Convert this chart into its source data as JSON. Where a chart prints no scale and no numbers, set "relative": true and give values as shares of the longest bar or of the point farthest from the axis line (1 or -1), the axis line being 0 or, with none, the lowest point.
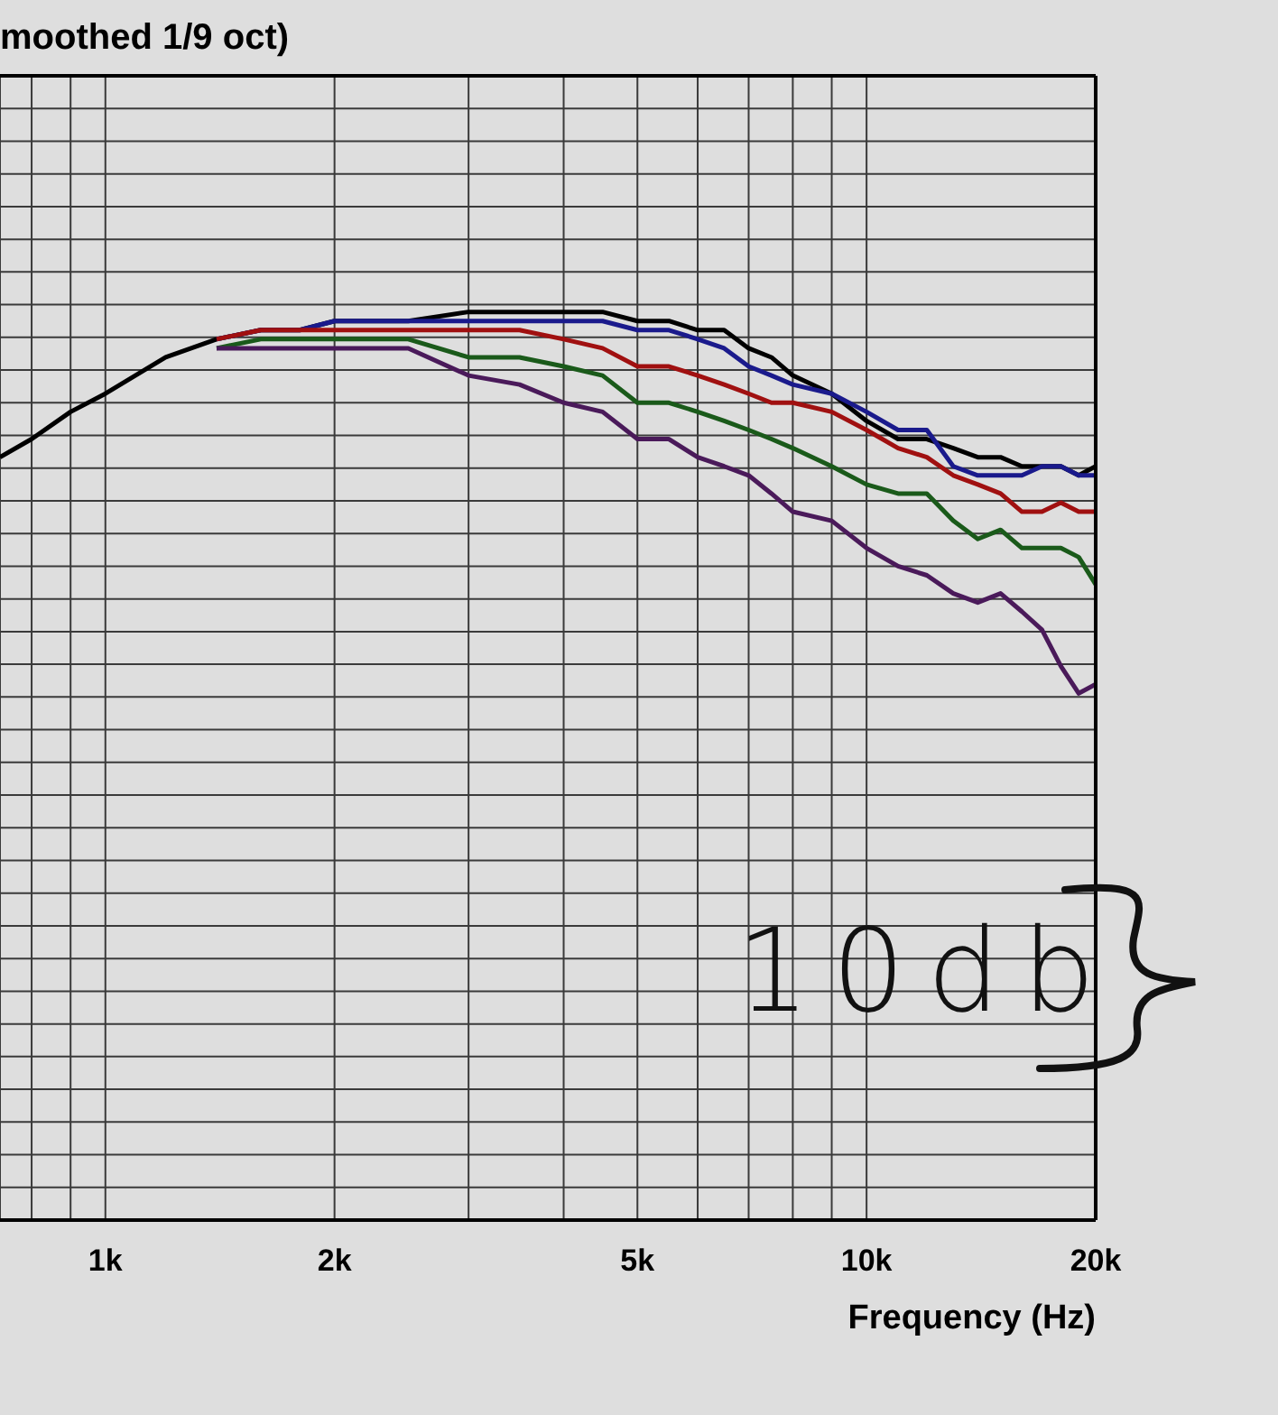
{
  "chart_data": {
    "type": "line",
    "title": "moothed 1/9 oct)",
    "xlabel": "Frequency (Hz)",
    "annotations": [
      "10db"
    ],
    "relative": true,
    "log": "x",
    "grid": true,
    "xlim": [
      727,
      20000
    ],
    "xticks": [
      {
        "value": 800,
        "label": null
      },
      {
        "value": 900,
        "label": null
      },
      {
        "value": 1000,
        "label": "1k"
      },
      {
        "value": 2000,
        "label": "2k"
      },
      {
        "value": 3000,
        "label": null
      },
      {
        "value": 4000,
        "label": null
      },
      {
        "value": 5000,
        "label": "5k"
      },
      {
        "value": 6000,
        "label": null
      },
      {
        "value": 7000,
        "label": null
      },
      {
        "value": 8000,
        "label": null
      },
      {
        "value": 9000,
        "label": null
      },
      {
        "value": 10000,
        "label": "10k"
      },
      {
        "value": 20000,
        "label": "20k"
      }
    ],
    "x": [
      727,
      800,
      900,
      1000,
      1200,
      1400,
      1600,
      1800,
      2000,
      2500,
      3000,
      3500,
      4000,
      4500,
      5000,
      5500,
      6000,
      6500,
      7000,
      7500,
      8000,
      9000,
      10000,
      11000,
      12000,
      13000,
      14000,
      15000,
      16000,
      17000,
      18000,
      19000,
      20000
    ],
    "series": [
      {
        "color": "#000000",
        "values": [
          0.84,
          0.86,
          0.89,
          0.91,
          0.95,
          0.97,
          0.98,
          0.98,
          0.99,
          0.99,
          1.0,
          1.0,
          1.0,
          1.0,
          0.99,
          0.99,
          0.98,
          0.98,
          0.96,
          0.95,
          0.93,
          0.91,
          0.88,
          0.86,
          0.86,
          0.85,
          0.84,
          0.84,
          0.83,
          0.83,
          0.83,
          0.82,
          0.83
        ]
      },
      {
        "color": "#1a1a8c",
        "values": [
          null,
          null,
          null,
          null,
          null,
          0.97,
          0.98,
          0.98,
          0.99,
          0.99,
          0.99,
          0.99,
          0.99,
          0.99,
          0.98,
          0.98,
          0.97,
          0.96,
          0.94,
          0.93,
          0.92,
          0.91,
          0.89,
          0.87,
          0.87,
          0.83,
          0.82,
          0.82,
          0.82,
          0.83,
          0.83,
          0.82,
          0.82
        ]
      },
      {
        "color": "#a01010",
        "values": [
          null,
          null,
          null,
          null,
          null,
          0.97,
          0.98,
          0.98,
          0.98,
          0.98,
          0.98,
          0.98,
          0.97,
          0.96,
          0.94,
          0.94,
          0.93,
          0.92,
          0.91,
          0.9,
          0.9,
          0.89,
          0.87,
          0.85,
          0.84,
          0.82,
          0.81,
          0.8,
          0.78,
          0.78,
          0.79,
          0.78,
          0.78
        ]
      },
      {
        "color": "#1a5a1a",
        "values": [
          null,
          null,
          null,
          null,
          null,
          0.96,
          0.97,
          0.97,
          0.97,
          0.97,
          0.95,
          0.95,
          0.94,
          0.93,
          0.9,
          0.9,
          0.89,
          0.88,
          0.87,
          0.86,
          0.85,
          0.83,
          0.81,
          0.8,
          0.8,
          0.77,
          0.75,
          0.76,
          0.74,
          0.74,
          0.74,
          0.73,
          0.7
        ]
      },
      {
        "color": "#4a1a5a",
        "values": [
          null,
          null,
          null,
          null,
          null,
          0.96,
          0.96,
          0.96,
          0.96,
          0.96,
          0.93,
          0.92,
          0.9,
          0.89,
          0.86,
          0.86,
          0.84,
          0.83,
          0.82,
          0.8,
          0.78,
          0.77,
          0.74,
          0.72,
          0.71,
          0.69,
          0.68,
          0.69,
          0.67,
          0.65,
          0.61,
          0.58,
          0.59
        ]
      }
    ]
  }
}
